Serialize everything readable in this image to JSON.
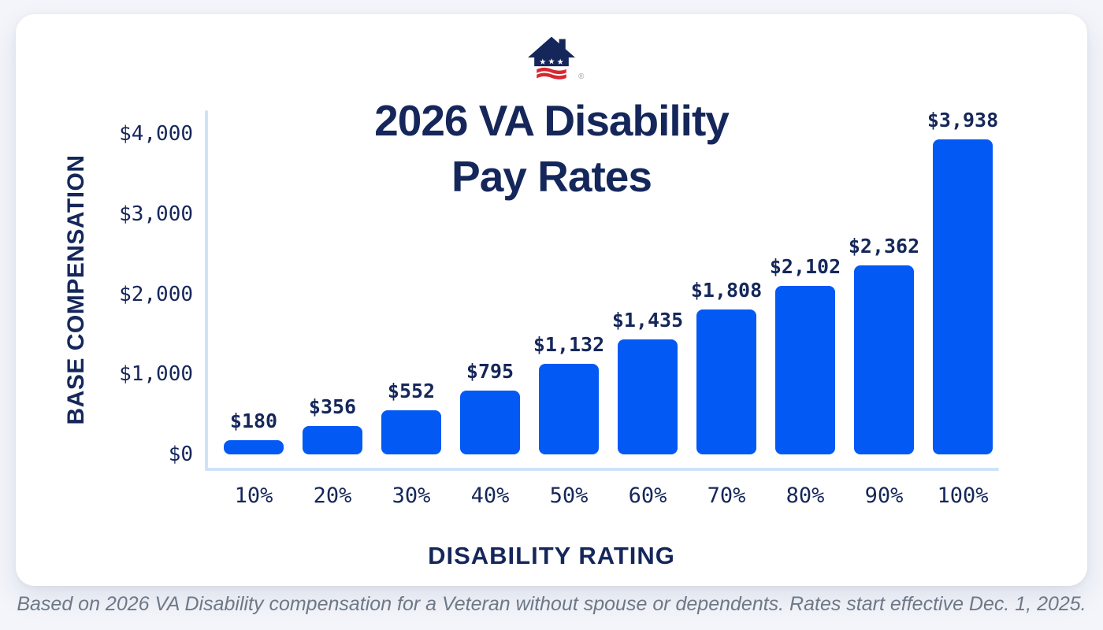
{
  "header": {
    "title_line1": "2026 VA Disability",
    "title_line2": "Pay Rates",
    "logo": "house-with-stars-and-stripes-logo",
    "registered_mark": "®"
  },
  "footer": {
    "note": "Based on 2026 VA Disability compensation for a Veteran without spouse or dependents. Rates start effective Dec. 1, 2025."
  },
  "colors": {
    "bar_blue": "#0359F4",
    "navy_text": "#15275A",
    "axis_light_blue": "#cfe2f8",
    "logo_navy": "#14265A",
    "logo_red": "#D7282F",
    "footer_gray": "#6e7887",
    "card_background": "#ffffff",
    "page_background": "#f3f5fa"
  },
  "chart_data": {
    "type": "bar",
    "title": "2026 VA Disability Pay Rates",
    "xlabel": "DISABILITY RATING",
    "ylabel": "BASE COMPENSATION",
    "ylim": [
      0,
      4000
    ],
    "grid": false,
    "legend": false,
    "categories": [
      "10%",
      "20%",
      "30%",
      "40%",
      "50%",
      "60%",
      "70%",
      "80%",
      "90%",
      "100%"
    ],
    "values": [
      180,
      356,
      552,
      795,
      1132,
      1435,
      1808,
      2102,
      2362,
      3938
    ],
    "value_labels": [
      "$180",
      "$356",
      "$552",
      "$795",
      "$1,132",
      "$1,435",
      "$1,808",
      "$2,102",
      "$2,362",
      "$3,938"
    ],
    "yticks": {
      "values": [
        0,
        1000,
        2000,
        3000,
        4000
      ],
      "labels": [
        "$0",
        "$1,000",
        "$2,000",
        "$3,000",
        "$4,000"
      ]
    }
  }
}
